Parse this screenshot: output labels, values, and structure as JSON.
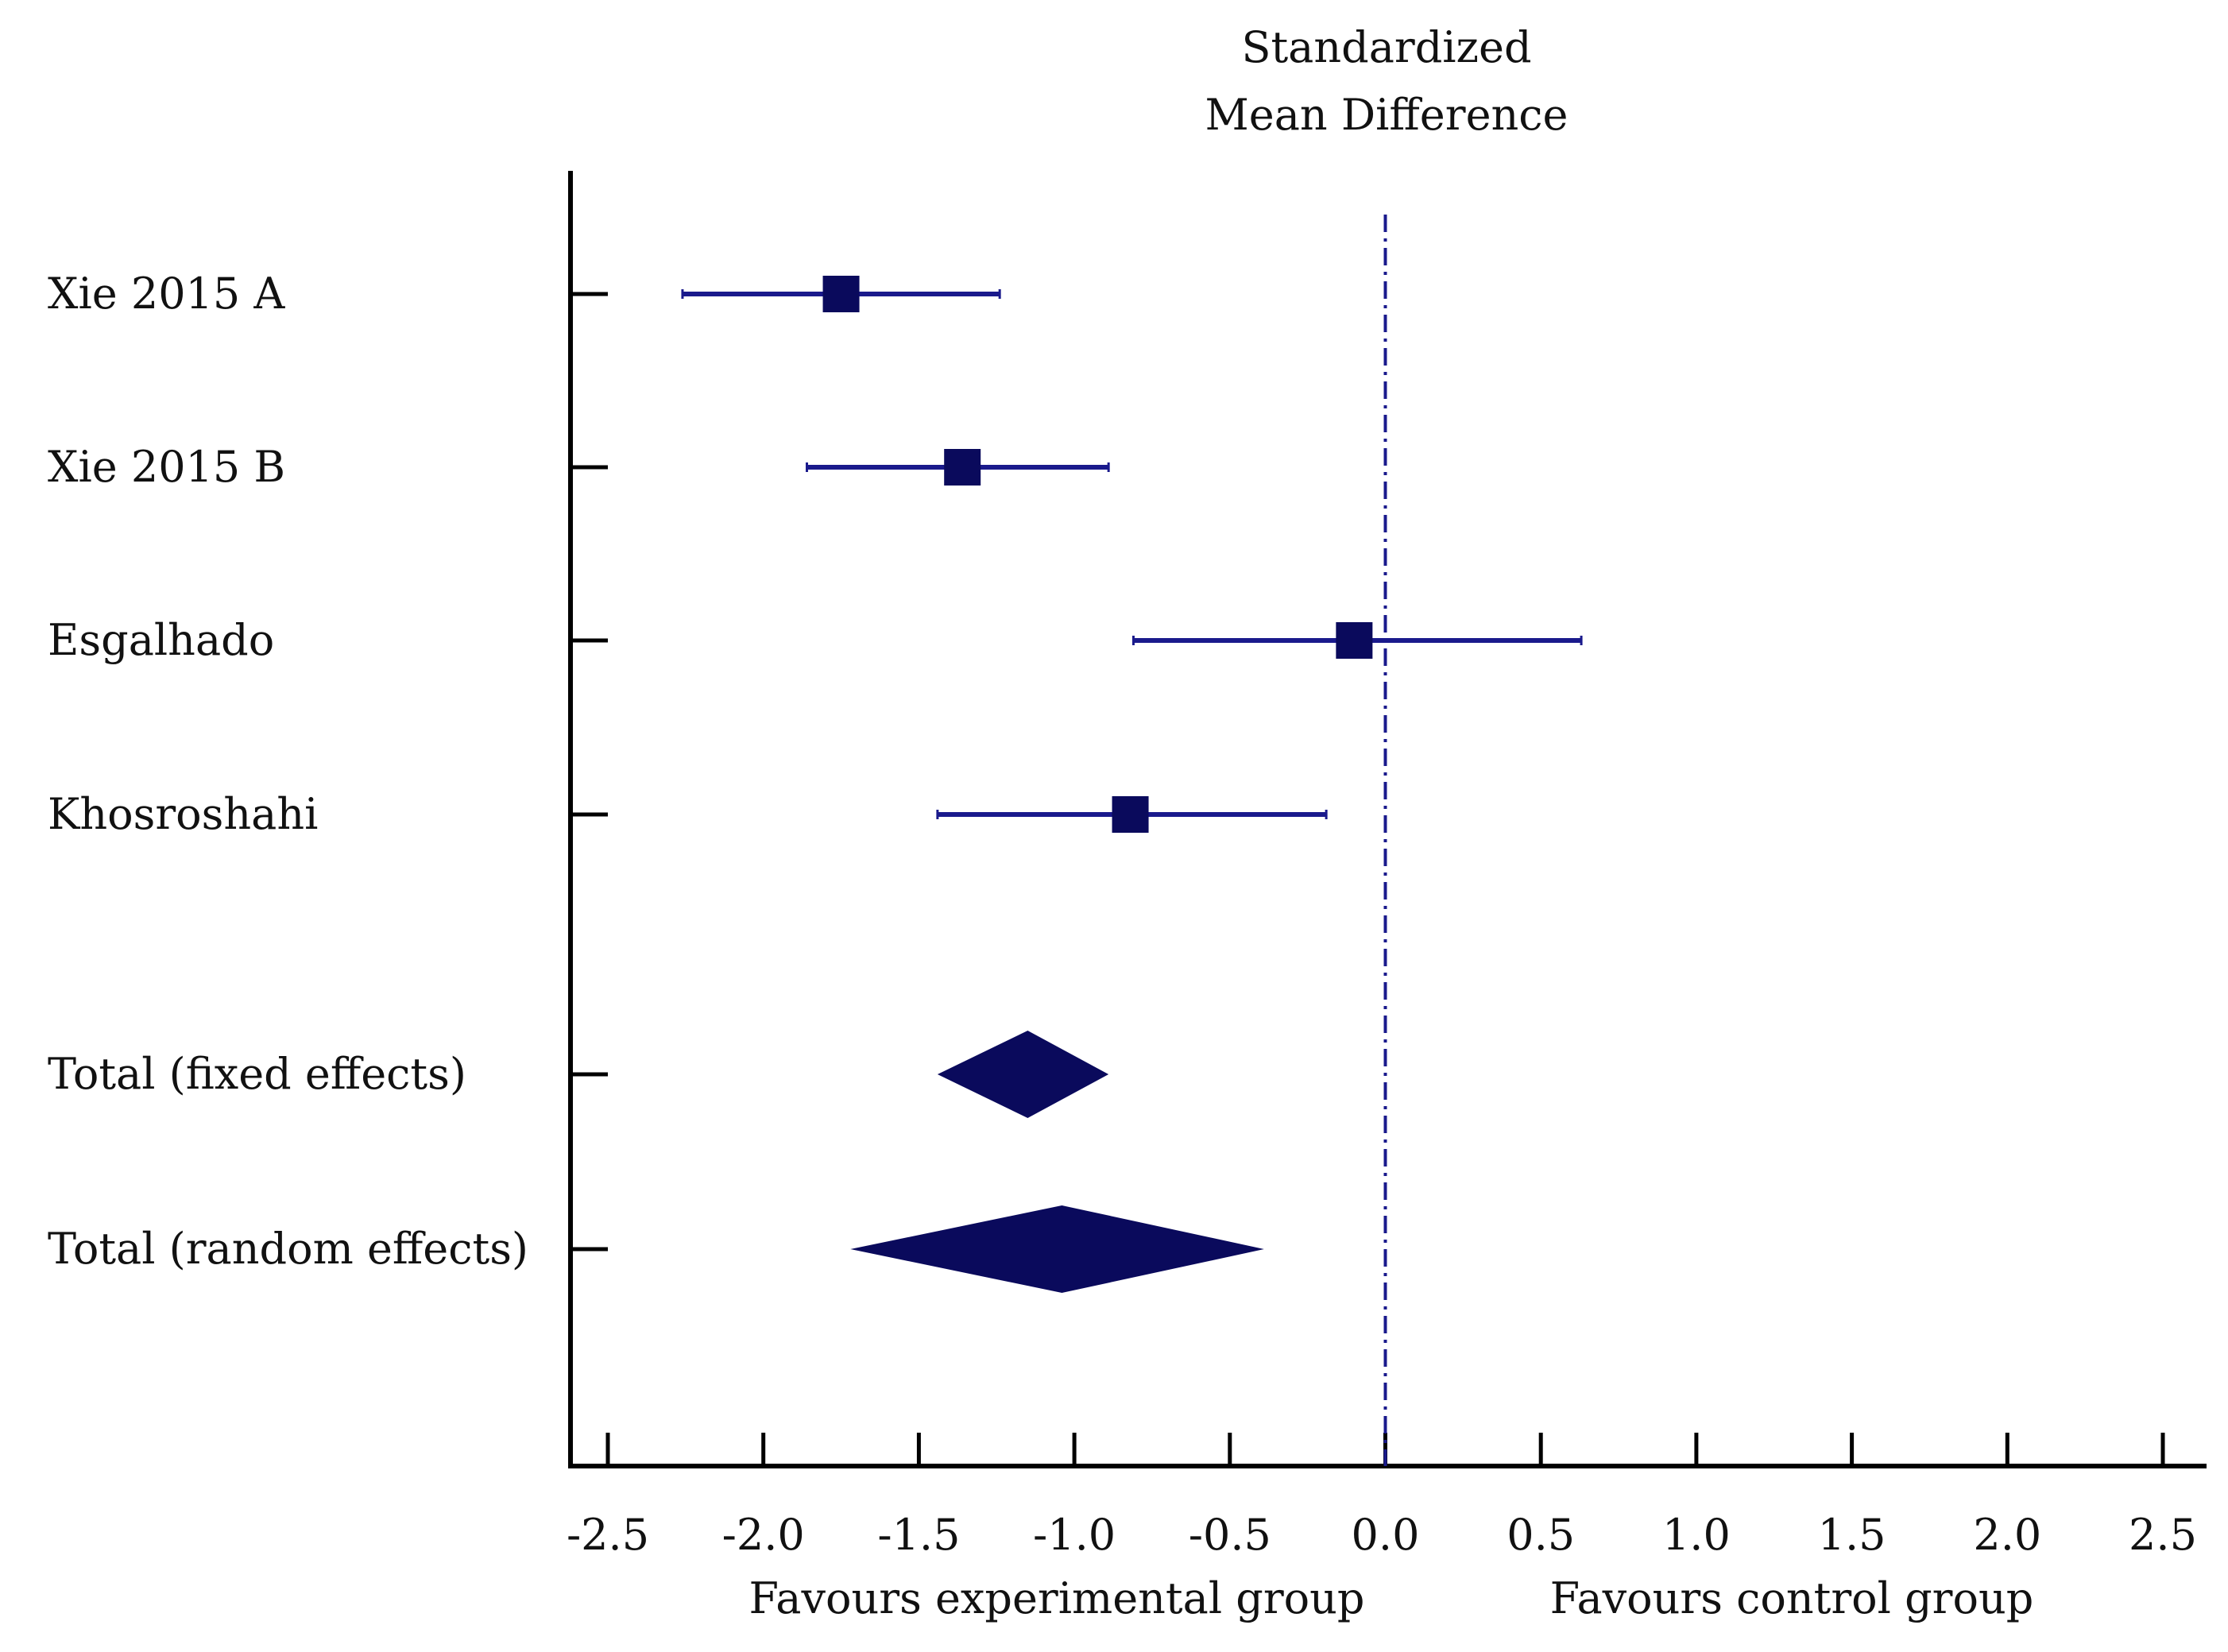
{
  "chart_data": {
    "type": "forest",
    "title": [
      "Standardized",
      "Mean Difference"
    ],
    "xlim": [
      -2.5,
      2.5
    ],
    "xticks": [
      "-2.5",
      "-2.0",
      "-1.5",
      "-1.0",
      "-0.5",
      "0.0",
      "0.5",
      "1.0",
      "1.5",
      "2.0",
      "2.5"
    ],
    "reference_line": 0.0,
    "studies": [
      {
        "label": "Xie 2015 A",
        "estimate": -1.75,
        "ci_low": -2.26,
        "ci_high": -1.24,
        "marker": "square"
      },
      {
        "label": "Xie 2015 B",
        "estimate": -1.36,
        "ci_low": -1.86,
        "ci_high": -0.89,
        "marker": "square"
      },
      {
        "label": "Esgalhado",
        "estimate": -0.1,
        "ci_low": -0.81,
        "ci_high": 0.63,
        "marker": "square"
      },
      {
        "label": "Khosroshahi",
        "estimate": -0.82,
        "ci_low": -1.44,
        "ci_high": -0.19,
        "marker": "square"
      },
      {
        "label": "Total (fixed effects)",
        "estimate": -1.15,
        "ci_low": -1.44,
        "ci_high": -0.89,
        "marker": "diamond"
      },
      {
        "label": "Total (random effects)",
        "estimate": -1.04,
        "ci_low": -1.72,
        "ci_high": -0.39,
        "marker": "diamond"
      }
    ],
    "favours_left": "Favours experimental group",
    "favours_right": "Favours control group",
    "color": "#0a0a5c",
    "line_color": "#1a1a8c"
  }
}
